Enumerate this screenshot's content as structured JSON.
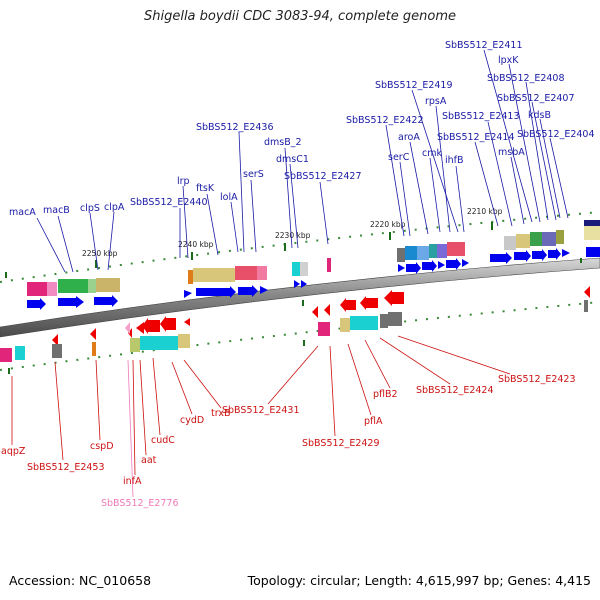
{
  "title": "Shigella boydii CDC 3083-94, complete genome",
  "footer": {
    "accession": "Accession: NC_010658",
    "summary": "Topology: circular; Length: 4,615,997 bp; Genes: 4,415"
  },
  "scale_labels": [
    "2250 kbp",
    "2240 kbp",
    "2230 kbp",
    "2220 kbp",
    "2210 kbp"
  ],
  "colors": {
    "forward_label": "#1a1aa6",
    "reverse_label": "#cc1111",
    "pseudo_label": "#f07ab8",
    "forward_gene": "#0000ee",
    "reverse_gene": "#ee0000"
  },
  "forward_genes": [
    "macA",
    "macB",
    "clpS",
    "clpA",
    "SbBS512_E2440",
    "lrp",
    "ftsK",
    "lolA",
    "serS",
    "SbBS512_E2436",
    "dmsB_2",
    "dmsC1",
    "SbBS512_E2427",
    "SbBS512_E2422",
    "serC",
    "aroA",
    "cmk",
    "rpsA",
    "SbBS512_E2419",
    "ihfB",
    "SbBS512_E2414",
    "SbBS512_E2413",
    "msbA",
    "lpxK",
    "SbBS512_E2411",
    "SbBS512_E2408",
    "SbBS512_E2407",
    "kdsB",
    "SbBS512_E2404"
  ],
  "reverse_genes": [
    "aqpZ",
    "SbBS512_E2453",
    "cspD",
    "infA",
    "aat",
    "cudC",
    "cydD",
    "trxB",
    "SbBS512_E2431",
    "SbBS512_E2429",
    "pflA",
    "pflB2",
    "SbBS512_E2424",
    "SbBS512_E2423"
  ],
  "pseudo_genes": [
    "SbBS512_E2776"
  ]
}
